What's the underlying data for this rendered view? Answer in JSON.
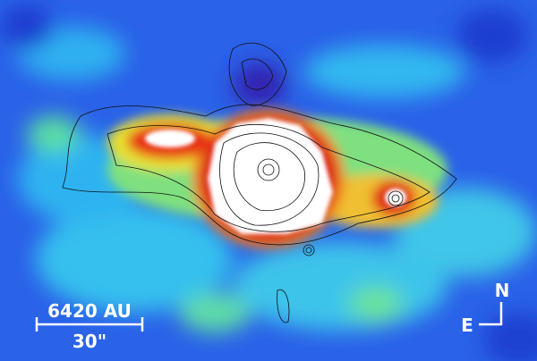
{
  "scale_bar": {
    "distance_label": "6420 AU",
    "angle_label": "30\""
  },
  "compass": {
    "north": "N",
    "east": "E"
  }
}
